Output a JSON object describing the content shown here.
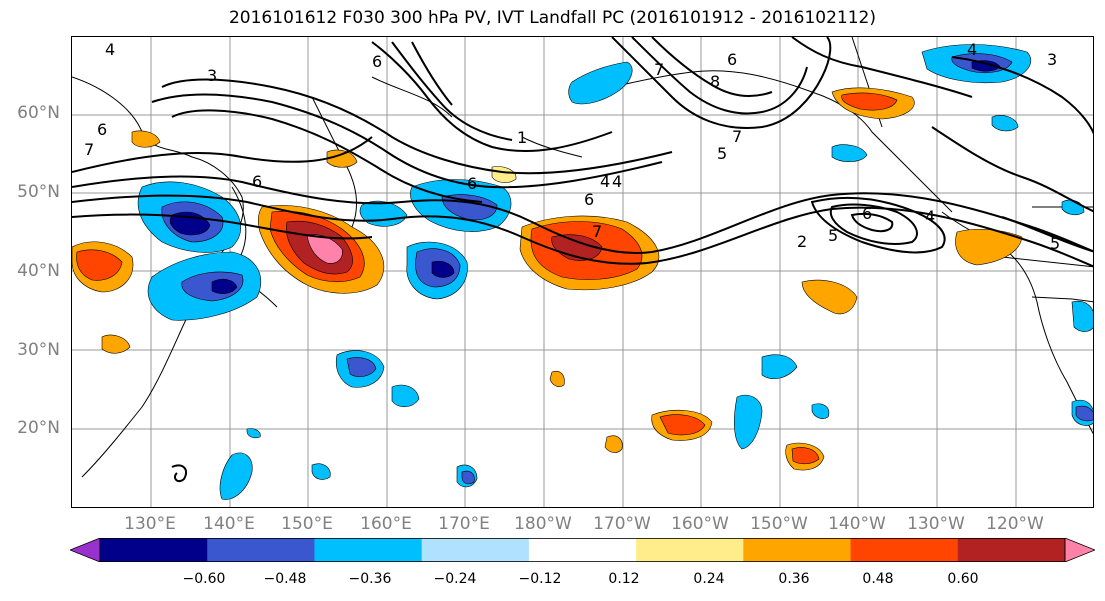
{
  "title": "2016101612 F030 300 hPa PV, IVT Landfall PC (2016101912 - 2016102112)",
  "lat_labels": [
    "60°N",
    "50°N",
    "40°N",
    "30°N",
    "20°N"
  ],
  "lon_labels": [
    "130°E",
    "140°E",
    "150°E",
    "160°E",
    "170°E",
    "180°W",
    "170°W",
    "160°W",
    "150°W",
    "140°W",
    "130°W",
    "120°W"
  ],
  "colorbar": {
    "ticks": [
      "−0.60",
      "−0.48",
      "−0.36",
      "−0.24",
      "−0.12",
      "0.12",
      "0.24",
      "0.36",
      "0.48",
      "0.60"
    ],
    "colors": [
      "#9932cc",
      "#00008b",
      "#3a57cf",
      "#00bfff",
      "#b0e2ff",
      "#ffffff",
      "#ffec8b",
      "#ffa500",
      "#ff4500",
      "#b22222",
      "#ff82ab"
    ]
  },
  "contour_labels": [
    "4",
    "3",
    "6",
    "7",
    "6",
    "6",
    "6",
    "8",
    "7",
    "5",
    "1",
    "6",
    "4",
    "6",
    "7",
    "6",
    "5",
    "2",
    "4",
    "5",
    "3",
    "4",
    "7",
    "4",
    "3"
  ]
}
